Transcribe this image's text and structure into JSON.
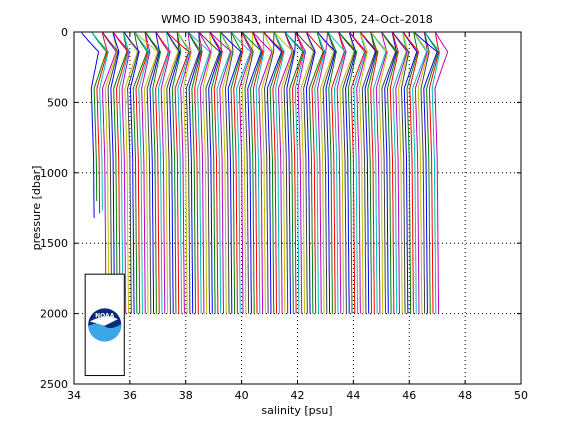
{
  "chart_data": {
    "type": "line",
    "title": "WMO ID 5903843, internal ID 4305, 24–Oct–2018",
    "xlabel": "salinity [psu]",
    "ylabel": "pressure [dbar]",
    "xlim": [
      34,
      50
    ],
    "ylim": [
      0,
      2500
    ],
    "y_reversed": true,
    "grid": true,
    "x_ticks": [
      "34",
      "36",
      "38",
      "40",
      "42",
      "44",
      "46",
      "48",
      "50"
    ],
    "y_ticks": [
      "0",
      "500",
      "1000",
      "1500",
      "2000",
      "2500"
    ],
    "offset_per_profile": 0.1,
    "series_colors": [
      "#0000ff",
      "#008000",
      "#ff0000",
      "#00bfbf",
      "#bf00bf",
      "#bfbf00",
      "#404040"
    ],
    "profile_count": 124,
    "base_salinity": 34.75,
    "deep_salinity": 34.85,
    "profile_max_pressure": 2000,
    "short_profiles": [
      {
        "index": 0,
        "max_pressure": 1320
      },
      {
        "index": 1,
        "max_pressure": 1200
      },
      {
        "index": 2,
        "max_pressure": 1290
      },
      {
        "index": 3,
        "max_pressure": 1270
      }
    ],
    "logo": {
      "name": "noaa-logo",
      "text": "NOAA",
      "x_range": [
        34.4,
        35.8
      ],
      "y_range": [
        1720,
        2440
      ]
    }
  }
}
